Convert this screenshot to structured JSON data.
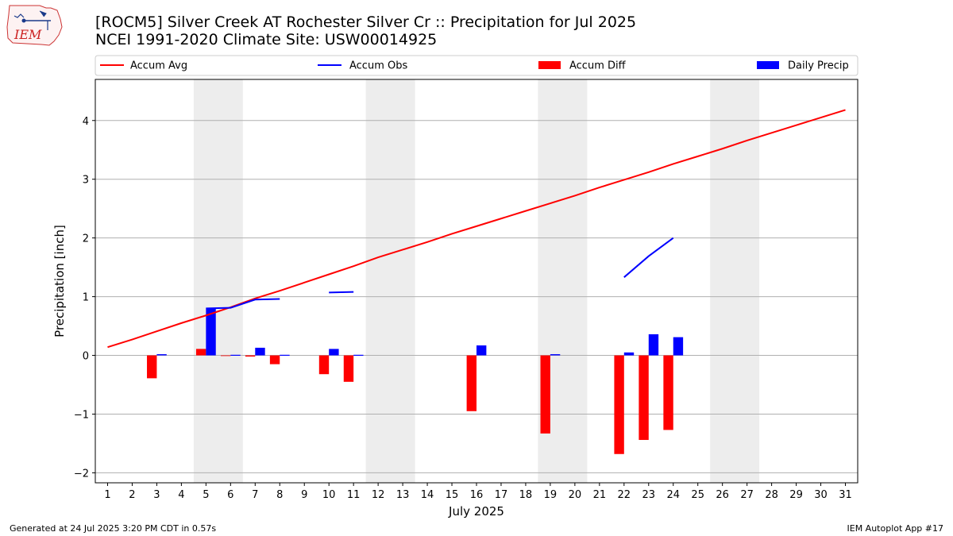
{
  "header": {
    "title_line1": "[ROCM5] Silver Creek  AT Rochester Silver Cr :: Precipitation for Jul 2025",
    "title_line2": "NCEI 1991-2020 Climate Site: USW00014925"
  },
  "logo": {
    "text": "IEM"
  },
  "footer": {
    "generated": "Generated at 24 Jul 2025 3:20 PM CDT in 0.57s",
    "app": "IEM Autoplot App #17"
  },
  "colors": {
    "accum_avg": "#ff0000",
    "accum_obs": "#0000ff",
    "accum_diff": "#ff0000",
    "daily_precip": "#0000ff",
    "weekend_shade": "#ededed",
    "grid": "#b0b0b0"
  },
  "chart_data": {
    "type": "bar",
    "xlabel": "July 2025",
    "ylabel": "Precipitation [inch]",
    "ylim": [
      -2.17,
      4.7
    ],
    "yticks": [
      -2,
      -1,
      0,
      1,
      2,
      3,
      4
    ],
    "ytick_labels": [
      "−2",
      "−1",
      "0",
      "1",
      "2",
      "3",
      "4"
    ],
    "x": [
      1,
      2,
      3,
      4,
      5,
      6,
      7,
      8,
      9,
      10,
      11,
      12,
      13,
      14,
      15,
      16,
      17,
      18,
      19,
      20,
      21,
      22,
      23,
      24,
      25,
      26,
      27,
      28,
      29,
      30,
      31
    ],
    "xtick_labels": [
      "1",
      "2",
      "3",
      "4",
      "5",
      "6",
      "7",
      "8",
      "9",
      "10",
      "11",
      "12",
      "13",
      "14",
      "15",
      "16",
      "17",
      "18",
      "19",
      "20",
      "21",
      "22",
      "23",
      "24",
      "25",
      "26",
      "27",
      "28",
      "29",
      "30",
      "31"
    ],
    "grid": "horizontal",
    "legend_position": "top",
    "weekend_shading": [
      [
        5,
        6
      ],
      [
        12,
        13
      ],
      [
        19,
        20
      ],
      [
        26,
        27
      ]
    ],
    "series": [
      {
        "name": "Accum Avg",
        "kind": "line",
        "x": [
          1,
          2,
          3,
          4,
          5,
          6,
          7,
          8,
          9,
          10,
          11,
          12,
          13,
          14,
          15,
          16,
          17,
          18,
          19,
          20,
          21,
          22,
          23,
          24,
          25,
          26,
          27,
          28,
          29,
          30,
          31
        ],
        "values": [
          0.14,
          0.27,
          0.41,
          0.55,
          0.68,
          0.82,
          0.97,
          1.1,
          1.24,
          1.38,
          1.52,
          1.67,
          1.8,
          1.93,
          2.07,
          2.2,
          2.33,
          2.46,
          2.59,
          2.72,
          2.86,
          2.99,
          3.12,
          3.26,
          3.39,
          3.52,
          3.66,
          3.79,
          3.92,
          4.05,
          4.18
        ]
      },
      {
        "name": "Accum Obs",
        "kind": "line",
        "segments": [
          {
            "x": [
              5,
              6,
              7,
              8
            ],
            "values": [
              0.8,
              0.81,
              0.95,
              0.96
            ]
          },
          {
            "x": [
              10,
              11
            ],
            "values": [
              1.07,
              1.08
            ]
          },
          {
            "x": [
              22,
              23,
              24
            ],
            "values": [
              1.33,
              1.69,
              2.0
            ]
          }
        ]
      },
      {
        "name": "Accum Diff",
        "kind": "bar",
        "x": [
          3,
          5,
          6,
          7,
          8,
          10,
          11,
          16,
          19,
          22,
          23,
          24
        ],
        "values": [
          -0.39,
          0.11,
          -0.01,
          -0.02,
          -0.15,
          -0.32,
          -0.45,
          -0.95,
          -1.33,
          -1.68,
          -1.44,
          -1.27
        ]
      },
      {
        "name": "Daily Precip",
        "kind": "bar",
        "x": [
          3,
          5,
          6,
          7,
          8,
          10,
          11,
          16,
          19,
          22,
          23,
          24
        ],
        "values": [
          0.02,
          0.8,
          0.01,
          0.13,
          0.01,
          0.11,
          0.01,
          0.17,
          0.02,
          0.05,
          0.36,
          0.31
        ]
      }
    ]
  }
}
